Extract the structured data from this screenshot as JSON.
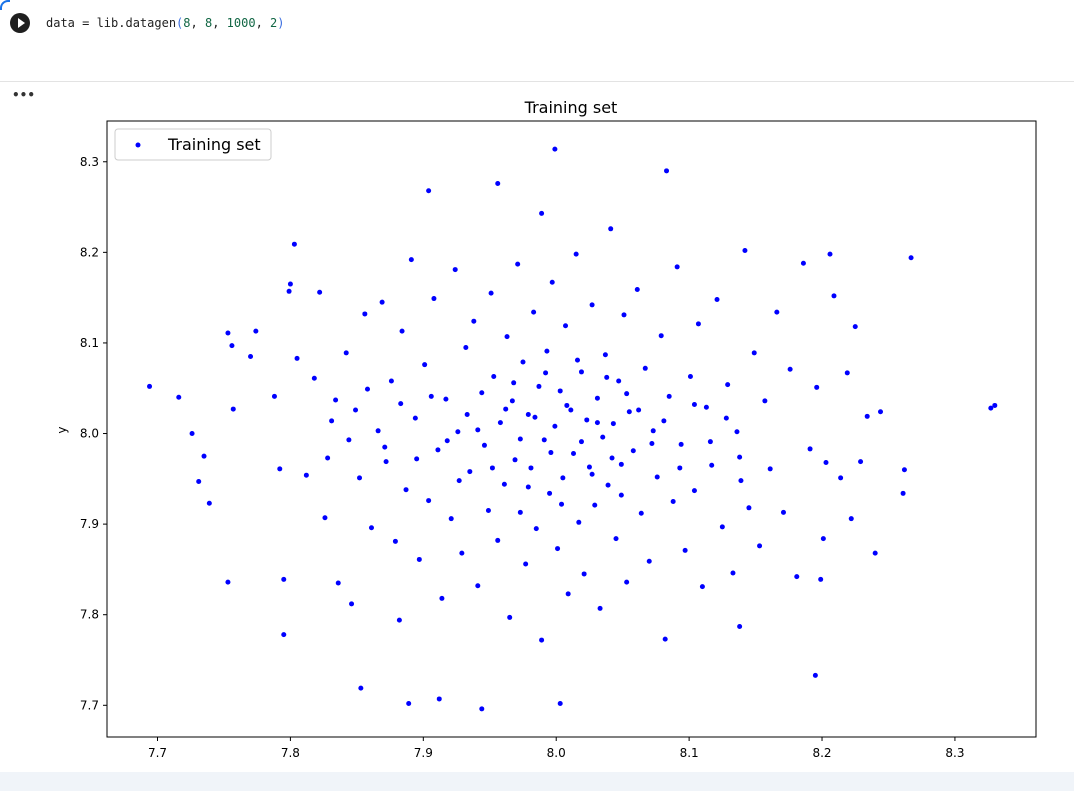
{
  "cell": {
    "code_var": "data = lib.datagen",
    "code_open": "(",
    "arg1": "8",
    "arg2": "8",
    "arg3": "1000",
    "arg4": "2",
    "code_close": ")",
    "output_menu": "•••"
  },
  "chart_data": {
    "type": "scatter",
    "title": "Training set",
    "xlabel": "",
    "ylabel": "y",
    "xlim": [
      7.662,
      8.361
    ],
    "ylim": [
      7.665,
      8.345
    ],
    "xticks": [
      "7.7",
      "7.8",
      "7.9",
      "8.0",
      "8.1",
      "8.2",
      "8.3"
    ],
    "yticks": [
      "7.7",
      "7.8",
      "7.9",
      "8.0",
      "8.1",
      "8.2",
      "8.3"
    ],
    "grid": false,
    "legend": {
      "position": "top-left",
      "entries": [
        "Training set"
      ]
    },
    "color": "#0000ff",
    "series": [
      {
        "name": "Training set",
        "points": [
          [
            7.694,
            8.052
          ],
          [
            7.716,
            8.04
          ],
          [
            7.726,
            8.0
          ],
          [
            7.735,
            7.975
          ],
          [
            7.731,
            7.947
          ],
          [
            7.739,
            7.923
          ],
          [
            7.753,
            8.111
          ],
          [
            7.756,
            8.097
          ],
          [
            7.757,
            8.027
          ],
          [
            7.753,
            7.836
          ],
          [
            7.77,
            8.085
          ],
          [
            7.774,
            8.113
          ],
          [
            7.795,
            7.778
          ],
          [
            7.795,
            7.839
          ],
          [
            7.799,
            8.157
          ],
          [
            7.8,
            8.165
          ],
          [
            7.803,
            8.209
          ],
          [
            7.853,
            7.719
          ],
          [
            7.882,
            7.794
          ],
          [
            7.889,
            7.702
          ],
          [
            7.904,
            8.268
          ],
          [
            7.912,
            7.707
          ],
          [
            7.944,
            7.696
          ],
          [
            7.956,
            8.276
          ],
          [
            7.989,
            8.243
          ],
          [
            7.999,
            8.314
          ],
          [
            8.003,
            7.702
          ],
          [
            8.083,
            8.29
          ],
          [
            8.195,
            7.733
          ],
          [
            8.206,
            8.198
          ],
          [
            8.267,
            8.194
          ],
          [
            8.327,
            8.028
          ],
          [
            8.33,
            8.031
          ],
          [
            8.244,
            8.024
          ],
          [
            8.24,
            7.868
          ],
          [
            8.261,
            7.934
          ],
          [
            8.262,
            7.96
          ],
          [
            8.225,
            8.118
          ],
          [
            8.219,
            8.067
          ],
          [
            8.199,
            7.839
          ],
          [
            8.201,
            7.884
          ],
          [
            8.138,
            7.787
          ],
          [
            7.788,
            8.041
          ],
          [
            7.792,
            7.961
          ],
          [
            7.805,
            8.083
          ],
          [
            7.812,
            7.954
          ],
          [
            7.818,
            8.061
          ],
          [
            7.822,
            8.156
          ],
          [
            7.826,
            7.907
          ],
          [
            7.831,
            8.014
          ],
          [
            7.836,
            7.835
          ],
          [
            7.842,
            8.089
          ],
          [
            7.846,
            7.812
          ],
          [
            7.849,
            8.026
          ],
          [
            7.852,
            7.951
          ],
          [
            7.856,
            8.132
          ],
          [
            7.861,
            7.896
          ],
          [
            7.866,
            8.003
          ],
          [
            7.869,
            8.145
          ],
          [
            7.872,
            7.969
          ],
          [
            7.876,
            8.058
          ],
          [
            7.879,
            7.881
          ],
          [
            7.884,
            8.113
          ],
          [
            7.887,
            7.938
          ],
          [
            7.891,
            8.192
          ],
          [
            7.894,
            8.017
          ],
          [
            7.897,
            7.861
          ],
          [
            7.901,
            8.076
          ],
          [
            7.904,
            7.926
          ],
          [
            7.908,
            8.149
          ],
          [
            7.911,
            7.982
          ],
          [
            7.914,
            7.818
          ],
          [
            7.917,
            8.038
          ],
          [
            7.921,
            7.906
          ],
          [
            7.924,
            8.181
          ],
          [
            7.926,
            8.002
          ],
          [
            7.929,
            7.868
          ],
          [
            7.932,
            8.095
          ],
          [
            7.935,
            7.958
          ],
          [
            7.938,
            8.124
          ],
          [
            7.941,
            7.832
          ],
          [
            7.944,
            8.045
          ],
          [
            7.946,
            7.987
          ],
          [
            7.949,
            7.915
          ],
          [
            7.951,
            8.155
          ],
          [
            7.953,
            8.063
          ],
          [
            7.956,
            7.882
          ],
          [
            7.958,
            8.012
          ],
          [
            7.961,
            7.944
          ],
          [
            7.963,
            8.107
          ],
          [
            7.965,
            7.797
          ],
          [
            7.967,
            8.036
          ],
          [
            7.969,
            7.971
          ],
          [
            7.971,
            8.187
          ],
          [
            7.973,
            7.913
          ],
          [
            7.975,
            8.079
          ],
          [
            7.977,
            7.856
          ],
          [
            7.979,
            8.021
          ],
          [
            7.981,
            7.962
          ],
          [
            7.983,
            8.134
          ],
          [
            7.985,
            7.895
          ],
          [
            7.987,
            8.052
          ],
          [
            7.989,
            7.772
          ],
          [
            7.991,
            7.993
          ],
          [
            7.993,
            8.091
          ],
          [
            7.995,
            7.934
          ],
          [
            7.997,
            8.167
          ],
          [
            7.999,
            8.008
          ],
          [
            8.001,
            7.873
          ],
          [
            8.003,
            8.047
          ],
          [
            8.005,
            7.951
          ],
          [
            8.007,
            8.119
          ],
          [
            8.009,
            7.823
          ],
          [
            8.011,
            8.026
          ],
          [
            8.013,
            7.978
          ],
          [
            8.015,
            8.198
          ],
          [
            8.017,
            7.902
          ],
          [
            8.019,
            8.068
          ],
          [
            8.021,
            7.845
          ],
          [
            8.023,
            8.015
          ],
          [
            8.025,
            7.963
          ],
          [
            8.027,
            8.142
          ],
          [
            8.029,
            7.921
          ],
          [
            8.031,
            8.039
          ],
          [
            8.033,
            7.807
          ],
          [
            8.035,
            7.996
          ],
          [
            8.037,
            8.087
          ],
          [
            8.039,
            7.943
          ],
          [
            8.041,
            8.226
          ],
          [
            8.043,
            8.011
          ],
          [
            8.045,
            7.884
          ],
          [
            8.047,
            8.058
          ],
          [
            8.049,
            7.966
          ],
          [
            8.051,
            8.131
          ],
          [
            8.053,
            7.836
          ],
          [
            8.055,
            8.024
          ],
          [
            8.058,
            7.981
          ],
          [
            8.061,
            8.159
          ],
          [
            8.064,
            7.912
          ],
          [
            8.067,
            8.072
          ],
          [
            8.07,
            7.859
          ],
          [
            8.073,
            8.003
          ],
          [
            8.076,
            7.952
          ],
          [
            8.079,
            8.108
          ],
          [
            8.082,
            7.773
          ],
          [
            8.085,
            8.041
          ],
          [
            8.088,
            7.925
          ],
          [
            8.091,
            8.184
          ],
          [
            8.094,
            7.988
          ],
          [
            8.097,
            7.871
          ],
          [
            8.101,
            8.063
          ],
          [
            8.104,
            7.937
          ],
          [
            8.107,
            8.121
          ],
          [
            8.11,
            7.831
          ],
          [
            8.113,
            8.029
          ],
          [
            8.117,
            7.965
          ],
          [
            8.121,
            8.148
          ],
          [
            8.125,
            7.897
          ],
          [
            8.129,
            8.054
          ],
          [
            8.133,
            7.846
          ],
          [
            8.136,
            8.002
          ],
          [
            8.139,
            7.948
          ],
          [
            8.142,
            8.202
          ],
          [
            8.145,
            7.918
          ],
          [
            8.149,
            8.089
          ],
          [
            8.153,
            7.876
          ],
          [
            8.157,
            8.036
          ],
          [
            8.161,
            7.961
          ],
          [
            8.166,
            8.134
          ],
          [
            8.171,
            7.913
          ],
          [
            8.176,
            8.071
          ],
          [
            8.181,
            7.842
          ],
          [
            8.186,
            8.188
          ],
          [
            8.191,
            7.983
          ],
          [
            8.196,
            8.051
          ],
          [
            8.203,
            7.968
          ],
          [
            8.209,
            8.152
          ],
          [
            8.214,
            7.951
          ],
          [
            8.222,
            7.906
          ],
          [
            8.229,
            7.969
          ],
          [
            8.234,
            8.019
          ],
          [
            7.941,
            8.004
          ],
          [
            7.962,
            8.027
          ],
          [
            7.973,
            7.994
          ],
          [
            7.984,
            8.018
          ],
          [
            7.996,
            7.979
          ],
          [
            8.008,
            8.031
          ],
          [
            8.019,
            7.991
          ],
          [
            8.031,
            8.012
          ],
          [
            8.042,
            7.973
          ],
          [
            8.053,
            8.044
          ],
          [
            7.952,
            7.962
          ],
          [
            7.968,
            8.056
          ],
          [
            7.979,
            7.941
          ],
          [
            7.992,
            8.067
          ],
          [
            8.004,
            7.922
          ],
          [
            8.016,
            8.081
          ],
          [
            8.027,
            7.955
          ],
          [
            8.038,
            8.062
          ],
          [
            8.049,
            7.932
          ],
          [
            8.062,
            8.026
          ],
          [
            7.933,
            8.021
          ],
          [
            7.927,
            7.948
          ],
          [
            8.072,
            7.989
          ],
          [
            8.081,
            8.014
          ],
          [
            8.093,
            7.962
          ],
          [
            8.104,
            8.032
          ],
          [
            8.116,
            7.991
          ],
          [
            8.128,
            8.017
          ],
          [
            8.138,
            7.974
          ],
          [
            7.918,
            7.992
          ],
          [
            7.906,
            8.041
          ],
          [
            7.895,
            7.972
          ],
          [
            7.883,
            8.033
          ],
          [
            7.871,
            7.985
          ],
          [
            7.858,
            8.049
          ],
          [
            7.844,
            7.993
          ],
          [
            7.834,
            8.037
          ],
          [
            7.828,
            7.973
          ]
        ]
      }
    ]
  }
}
